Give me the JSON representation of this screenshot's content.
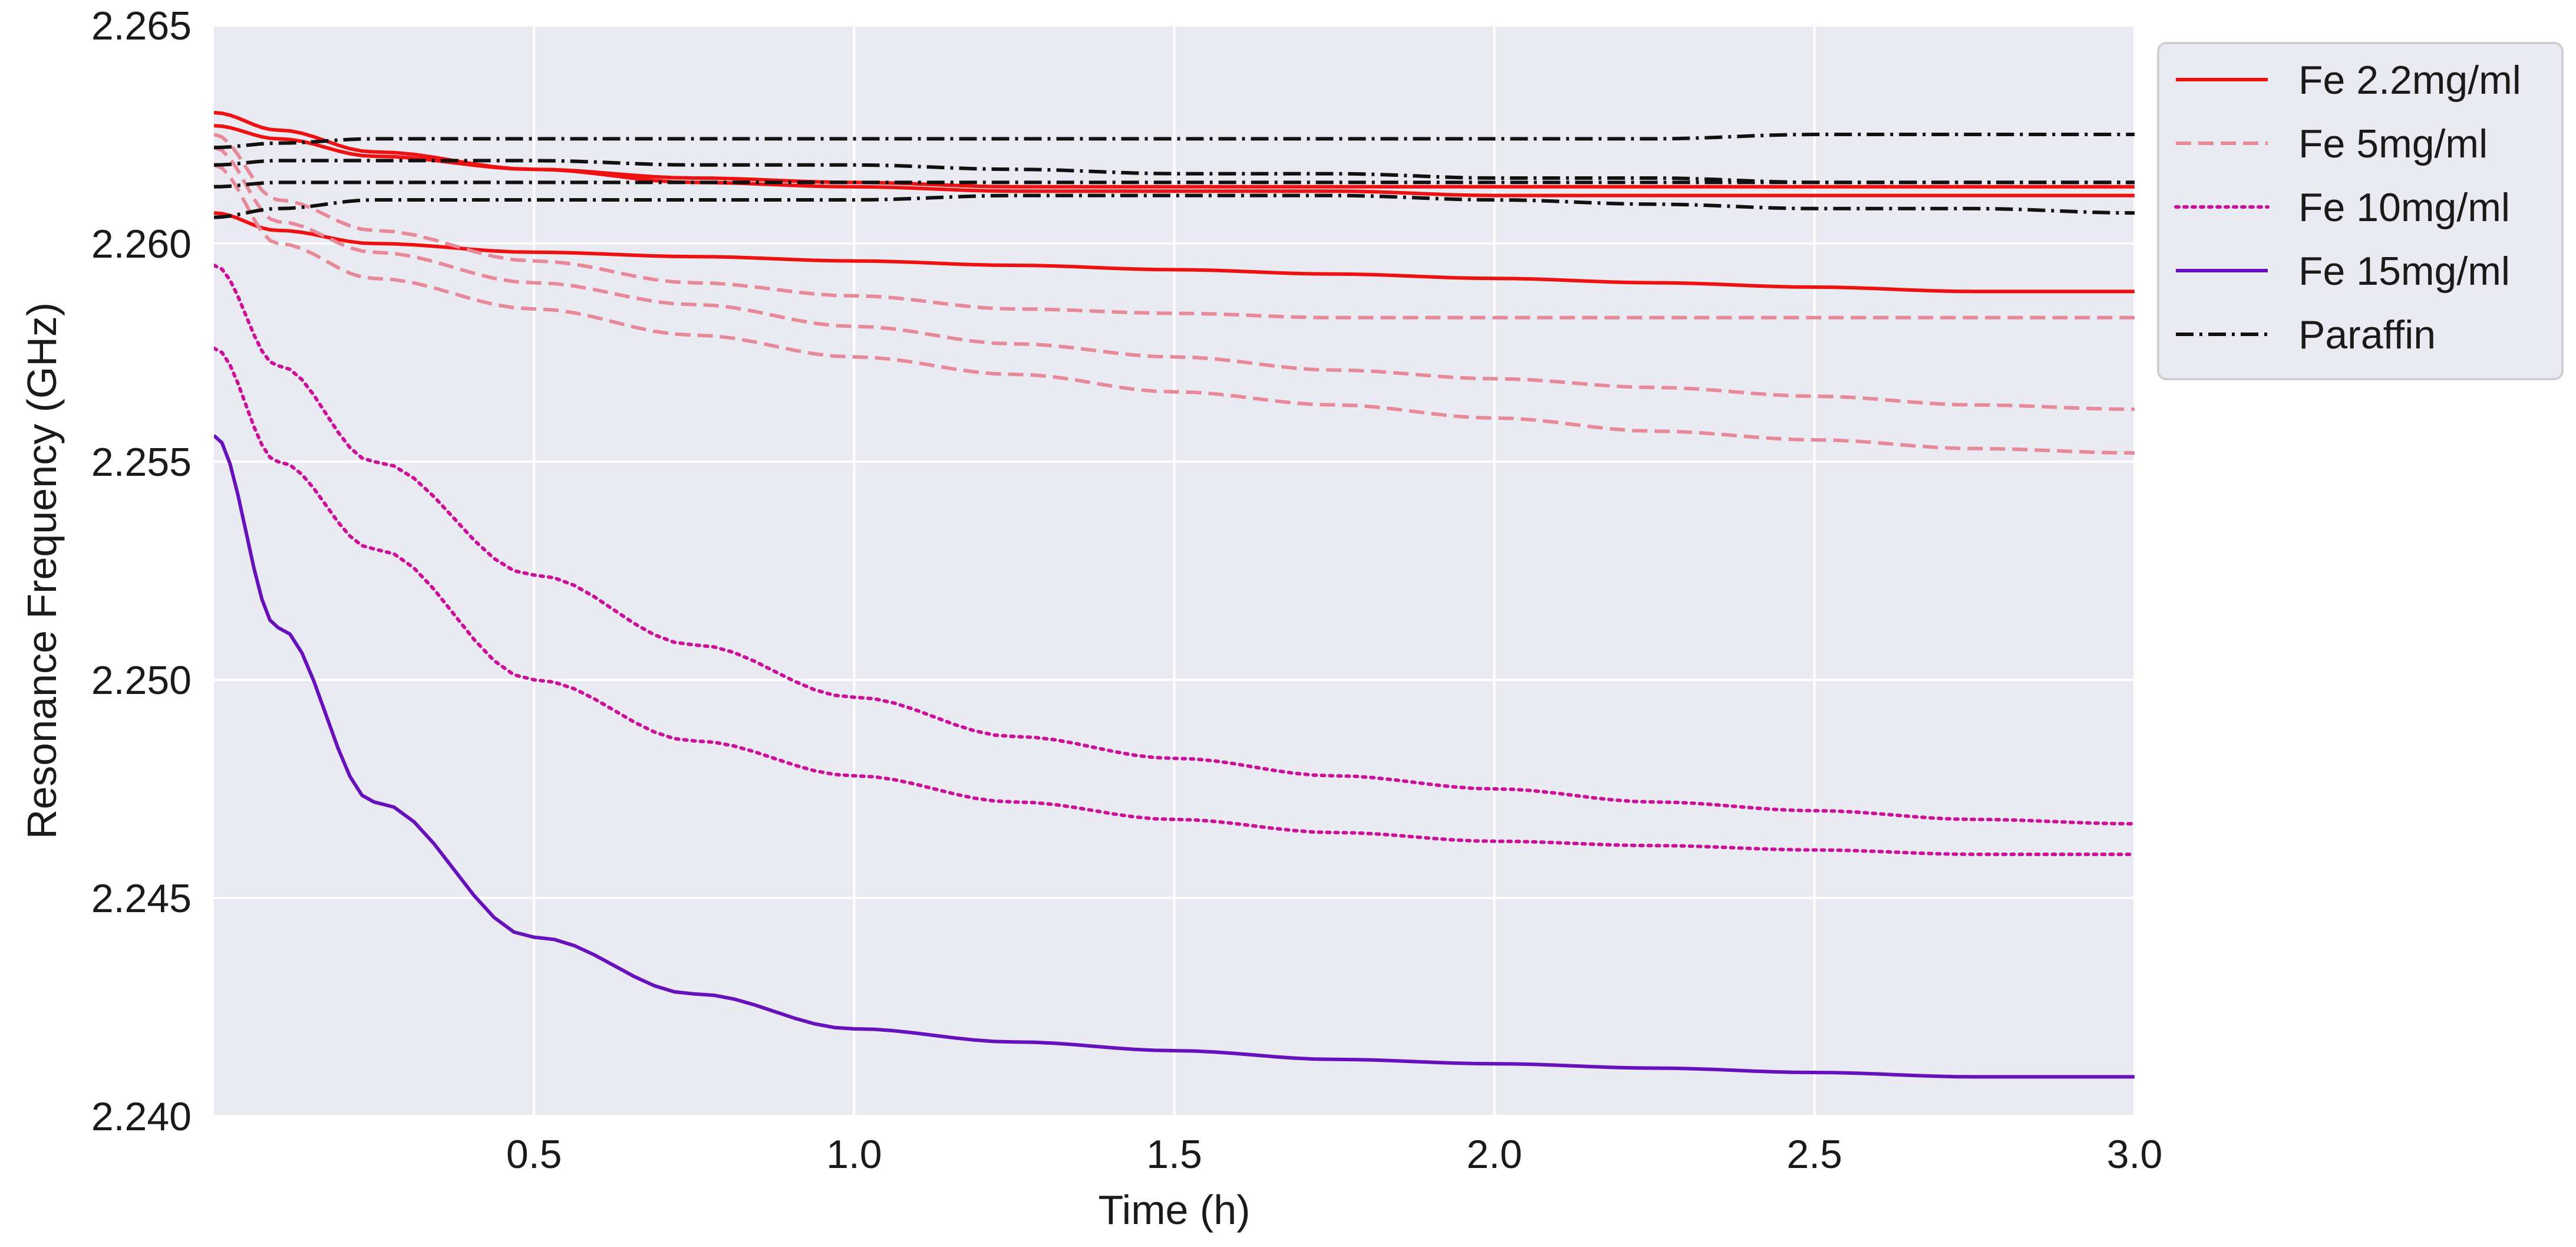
{
  "chart_data": {
    "type": "line",
    "title": "",
    "xlabel": "Time (h)",
    "ylabel": "Resonance Frequency (GHz)",
    "xlim": [
      0,
      3.0
    ],
    "ylim": [
      2.24,
      2.265
    ],
    "grid": true,
    "legend_position": "outside-top-right",
    "xticks": [
      0.5,
      1.0,
      1.5,
      2.0,
      2.5,
      3.0
    ],
    "xtick_labels": [
      "0.5",
      "1.0",
      "1.5",
      "2.0",
      "2.5",
      "3.0"
    ],
    "yticks": [
      2.24,
      2.245,
      2.25,
      2.255,
      2.26,
      2.265
    ],
    "ytick_labels": [
      "2.240",
      "2.245",
      "2.250",
      "2.255",
      "2.260",
      "2.265"
    ],
    "x": [
      0,
      0.1,
      0.25,
      0.5,
      0.75,
      1.0,
      1.25,
      1.5,
      1.75,
      2.0,
      2.25,
      2.5,
      2.75,
      3.0
    ],
    "series": [
      {
        "name": "Fe 2.2mg/ml",
        "legend": true,
        "color": "#ee1111",
        "dash": "solid",
        "values": [
          2.263,
          2.2626,
          2.2621,
          2.2617,
          2.2614,
          2.2613,
          2.2612,
          2.2612,
          2.2612,
          2.2611,
          2.2611,
          2.2611,
          2.2611,
          2.2611
        ]
      },
      {
        "name": "Fe 2.2mg/ml",
        "legend": false,
        "color": "#ee1111",
        "dash": "solid",
        "values": [
          2.2627,
          2.2624,
          2.262,
          2.2617,
          2.2615,
          2.2614,
          2.2613,
          2.2613,
          2.2613,
          2.2613,
          2.2613,
          2.2613,
          2.2613,
          2.2613
        ]
      },
      {
        "name": "Fe 2.2mg/ml",
        "legend": false,
        "color": "#ee1111",
        "dash": "solid",
        "values": [
          2.2607,
          2.2603,
          2.26,
          2.2598,
          2.2597,
          2.2596,
          2.2595,
          2.2594,
          2.2593,
          2.2592,
          2.2591,
          2.259,
          2.2589,
          2.2589
        ]
      },
      {
        "name": "Fe 5mg/ml",
        "legend": true,
        "color": "#e8899a",
        "dash": "dashed",
        "values": [
          2.2625,
          2.261,
          2.2603,
          2.2596,
          2.2591,
          2.2588,
          2.2585,
          2.2584,
          2.2583,
          2.2583,
          2.2583,
          2.2583,
          2.2583,
          2.2583
        ]
      },
      {
        "name": "Fe 5mg/ml",
        "legend": false,
        "color": "#e8899a",
        "dash": "dashed",
        "values": [
          2.2622,
          2.2605,
          2.2598,
          2.2591,
          2.2586,
          2.2581,
          2.2577,
          2.2574,
          2.2571,
          2.2569,
          2.2567,
          2.2565,
          2.2563,
          2.2562
        ]
      },
      {
        "name": "Fe 5mg/ml",
        "legend": false,
        "color": "#e8899a",
        "dash": "dashed",
        "values": [
          2.2618,
          2.26,
          2.2592,
          2.2585,
          2.2579,
          2.2574,
          2.257,
          2.2566,
          2.2563,
          2.256,
          2.2557,
          2.2555,
          2.2553,
          2.2552
        ]
      },
      {
        "name": "Fe 10mg/ml",
        "legend": true,
        "color": "#cc1199",
        "dash": "dotted",
        "values": [
          2.2595,
          2.2572,
          2.255,
          2.2524,
          2.2508,
          2.2496,
          2.2487,
          2.2482,
          2.2478,
          2.2475,
          2.2472,
          2.247,
          2.2468,
          2.2467
        ]
      },
      {
        "name": "Fe 10mg/ml",
        "legend": false,
        "color": "#cc1199",
        "dash": "dotted",
        "values": [
          2.2576,
          2.255,
          2.253,
          2.25,
          2.2486,
          2.2478,
          2.2472,
          2.2468,
          2.2465,
          2.2463,
          2.2462,
          2.2461,
          2.246,
          2.246
        ]
      },
      {
        "name": "Fe 15mg/ml",
        "legend": true,
        "color": "#6611bb",
        "dash": "solid",
        "values": [
          2.2556,
          2.2512,
          2.2472,
          2.2441,
          2.2428,
          2.242,
          2.2417,
          2.2415,
          2.2413,
          2.2412,
          2.2411,
          2.241,
          2.2409,
          2.2409
        ]
      },
      {
        "name": "Paraffin",
        "legend": true,
        "color": "#111111",
        "dash": "dashdot",
        "values": [
          2.2622,
          2.2623,
          2.2624,
          2.2624,
          2.2624,
          2.2624,
          2.2624,
          2.2624,
          2.2624,
          2.2624,
          2.2624,
          2.2625,
          2.2625,
          2.2625
        ]
      },
      {
        "name": "Paraffin",
        "legend": false,
        "color": "#111111",
        "dash": "dashdot",
        "values": [
          2.2618,
          2.2619,
          2.2619,
          2.2619,
          2.2618,
          2.2618,
          2.2617,
          2.2616,
          2.2616,
          2.2615,
          2.2615,
          2.2614,
          2.2614,
          2.2614
        ]
      },
      {
        "name": "Paraffin",
        "legend": false,
        "color": "#111111",
        "dash": "dashdot",
        "values": [
          2.2613,
          2.2614,
          2.2614,
          2.2614,
          2.2614,
          2.2614,
          2.2614,
          2.2614,
          2.2614,
          2.2614,
          2.2614,
          2.2614,
          2.2614,
          2.2614
        ]
      },
      {
        "name": "Paraffin",
        "legend": false,
        "color": "#111111",
        "dash": "dashdot",
        "values": [
          2.2606,
          2.2608,
          2.261,
          2.261,
          2.261,
          2.261,
          2.2611,
          2.2611,
          2.2611,
          2.261,
          2.2609,
          2.2608,
          2.2608,
          2.2607
        ]
      }
    ]
  }
}
